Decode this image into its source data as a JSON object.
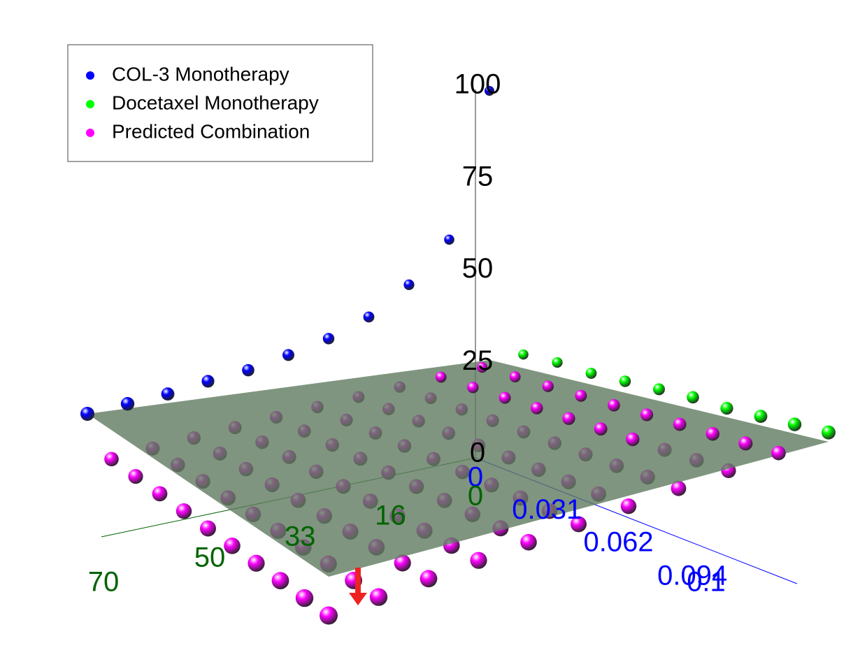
{
  "chart_data": {
    "type": "scatter3d",
    "x": [
      0,
      0.01,
      0.02,
      0.03,
      0.04,
      0.05,
      0.06,
      0.07,
      0.08,
      0.09,
      0.1
    ],
    "y": [
      0,
      7,
      14,
      21,
      28,
      35,
      42,
      49,
      56,
      63,
      70
    ],
    "xlim": [
      0,
      0.1
    ],
    "ylim": [
      0,
      70
    ],
    "zlim": [
      0,
      100
    ],
    "xticks": [
      0,
      0.031,
      0.062,
      0.094,
      0.1
    ],
    "yticks": [
      0,
      16,
      33,
      50,
      70
    ],
    "zticks": [
      0,
      25,
      50,
      75,
      100
    ],
    "x_color": "#0000ff",
    "y_color": "#006400",
    "z_color": "#000000",
    "plane_color": "#5f7a5f",
    "series": [
      {
        "name": "COL-3 Monotherapy",
        "color": "#0000ff",
        "values": [
          100,
          46,
          31,
          21,
          15,
          11,
          7.5,
          5.5,
          3,
          1.5,
          0
        ]
      },
      {
        "name": "Docetaxel Monotherapy",
        "color": "#00ff00",
        "values": [
          null,
          5,
          5,
          4,
          4,
          4,
          4,
          3,
          3,
          3,
          3
        ]
      },
      {
        "name": "Predicted Combination",
        "color": "#ff00ff",
        "values": [
          [
            null,
            null,
            null,
            null,
            null,
            null,
            null,
            null,
            null,
            null,
            null
          ],
          [
            null,
            2.5,
            2.3,
            2.1,
            1.9,
            1.7,
            1.5,
            1.3,
            1.1,
            0.9,
            0.7
          ],
          [
            null,
            1.2,
            1.0,
            0.8,
            0.6,
            0.4,
            0.2,
            0,
            -0.2,
            -0.4,
            -0.6
          ],
          [
            null,
            -0.1,
            -0.3,
            -0.5,
            -0.7,
            -0.9,
            -1.1,
            -1.3,
            -1.5,
            -1.7,
            -1.9
          ],
          [
            null,
            -1.4,
            -1.6,
            -1.8,
            -2,
            -2.2,
            -2.4,
            -2.6,
            -2.8,
            -3,
            -3.2
          ],
          [
            null,
            -2.7,
            -2.9,
            -3.1,
            -3.3,
            -3.5,
            -3.7,
            -3.9,
            -4.1,
            -4.3,
            -4.5
          ],
          [
            null,
            -4,
            -4.2,
            -4.4,
            -4.6,
            -4.8,
            -5,
            -5.2,
            -5.4,
            -5.6,
            -5.8
          ],
          [
            null,
            -5.3,
            -5.5,
            -5.7,
            -5.9,
            -6.1,
            -6.3,
            -6.5,
            -6.7,
            -6.9,
            -7.1
          ],
          [
            null,
            -6.6,
            -6.8,
            -7,
            -7.2,
            -7.4,
            -7.6,
            -7.8,
            -8,
            -8.2,
            -8.4
          ],
          [
            null,
            -7.9,
            -8.1,
            -8.3,
            -8.5,
            -8.7,
            -8.9,
            -9.1,
            -9.3,
            -9.5,
            -9.7
          ],
          [
            null,
            -9.2,
            -9.4,
            -9.6,
            -9.8,
            -10,
            -10.2,
            -10.4,
            -10.6,
            -10.8,
            -11
          ]
        ]
      }
    ]
  }
}
